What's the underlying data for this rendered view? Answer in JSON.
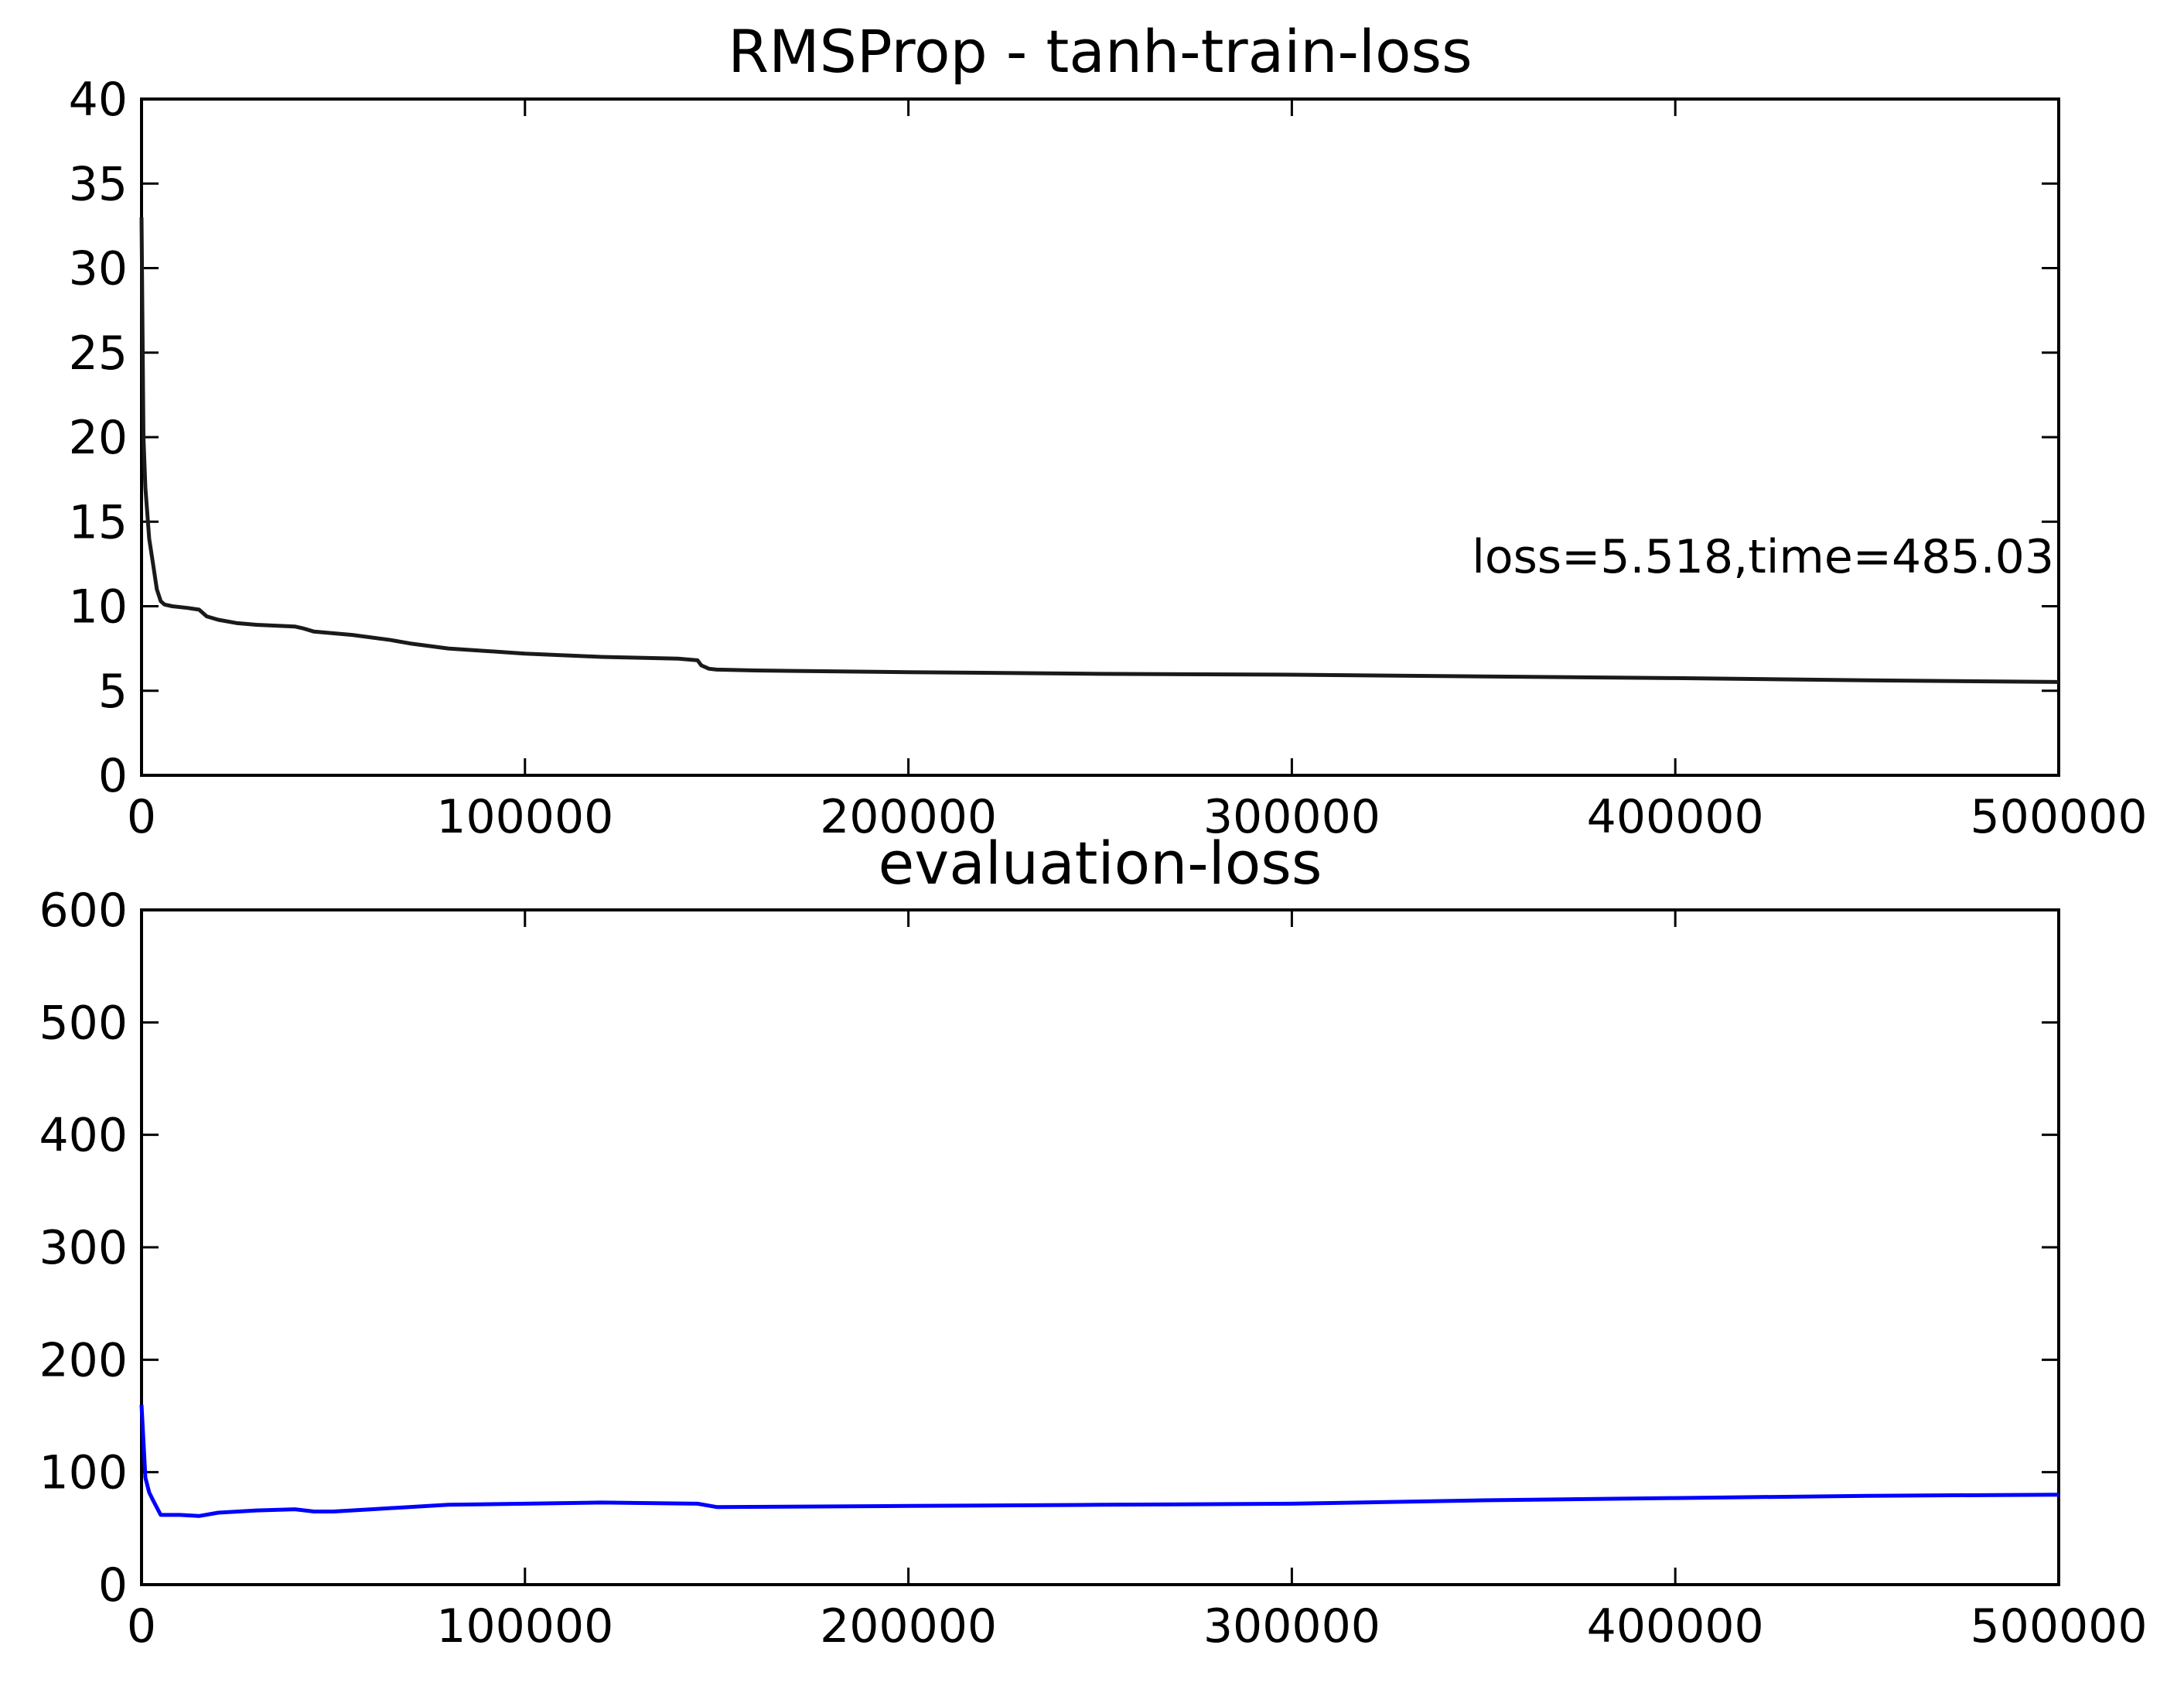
{
  "chart_data": [
    {
      "type": "line",
      "title": "RMSProp - tanh-train-loss",
      "xlabel": "",
      "ylabel": "",
      "xlim": [
        0,
        500000
      ],
      "ylim": [
        0,
        40
      ],
      "xticks": [
        "0",
        "100000",
        "200000",
        "300000",
        "400000",
        "500000"
      ],
      "yticks": [
        "0",
        "5",
        "10",
        "15",
        "20",
        "25",
        "30",
        "35",
        "40"
      ],
      "grid": false,
      "annotation": "loss=5.518,time=485.03",
      "series": [
        {
          "color": "#1a1a1a",
          "x": [
            0,
            500,
            1000,
            2000,
            3000,
            4000,
            5000,
            6000,
            8000,
            12000,
            15000,
            17000,
            20000,
            25000,
            30000,
            40000,
            42000,
            45000,
            55000,
            65000,
            70000,
            80000,
            100000,
            120000,
            140000,
            145000,
            146000,
            148000,
            150000,
            160000,
            200000,
            250000,
            300000,
            350000,
            400000,
            450000,
            500000
          ],
          "y": [
            33.0,
            20.0,
            17.0,
            14.0,
            12.5,
            11.0,
            10.3,
            10.1,
            10.0,
            9.9,
            9.8,
            9.4,
            9.2,
            9.0,
            8.9,
            8.8,
            8.7,
            8.5,
            8.3,
            8.0,
            7.8,
            7.5,
            7.2,
            7.0,
            6.9,
            6.8,
            6.5,
            6.3,
            6.25,
            6.2,
            6.1,
            6.0,
            5.95,
            5.85,
            5.75,
            5.62,
            5.518
          ]
        }
      ]
    },
    {
      "type": "line",
      "title": "evaluation-loss",
      "xlabel": "",
      "ylabel": "",
      "xlim": [
        0,
        500000
      ],
      "ylim": [
        0,
        600
      ],
      "xticks": [
        "0",
        "100000",
        "200000",
        "300000",
        "400000",
        "500000"
      ],
      "yticks": [
        "0",
        "100",
        "200",
        "300",
        "400",
        "500",
        "600"
      ],
      "grid": false,
      "series": [
        {
          "color": "#0000ff",
          "x": [
            0,
            1000,
            2000,
            3000,
            5000,
            10000,
            15000,
            20000,
            30000,
            40000,
            45000,
            50000,
            60000,
            80000,
            100000,
            120000,
            145000,
            150000,
            200000,
            250000,
            300000,
            350000,
            400000,
            450000,
            500000
          ],
          "y": [
            160,
            95,
            82,
            75,
            62,
            62,
            61,
            64,
            66,
            67,
            65,
            65,
            67,
            71,
            72,
            73,
            72,
            69,
            70,
            71,
            72,
            75,
            77,
            79,
            80
          ]
        }
      ]
    }
  ]
}
